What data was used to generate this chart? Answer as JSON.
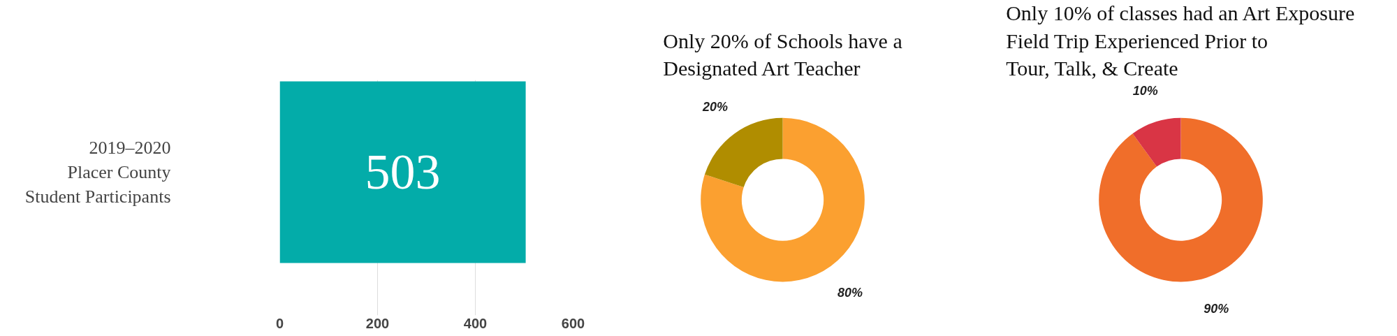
{
  "chart_data": [
    {
      "type": "bar",
      "orientation": "horizontal",
      "categories": [
        "2019–2020\nPlacer County\nStudent Participants"
      ],
      "values": [
        503
      ],
      "color": "#03aca9",
      "xlim": [
        0,
        600
      ],
      "xticks": [
        0,
        200,
        400,
        600
      ],
      "grid": "x",
      "data_labels": true
    },
    {
      "type": "donut",
      "title": "Only 20% of Schools have a\nDesignated Art Teacher",
      "categories": [
        null,
        null
      ],
      "values": [
        80,
        20
      ],
      "colors": [
        "#fba030",
        "#b08d00"
      ],
      "value_labels": [
        "80%",
        "20%"
      ]
    },
    {
      "type": "donut",
      "title": "Only 10% of classes had an Art Exposure\nField Trip Experienced Prior to\nTour, Talk, & Create",
      "categories": [
        null,
        null
      ],
      "values": [
        90,
        10
      ],
      "colors": [
        "#f06e2a",
        "#d93545"
      ],
      "value_labels": [
        "90%",
        "10%"
      ]
    }
  ]
}
